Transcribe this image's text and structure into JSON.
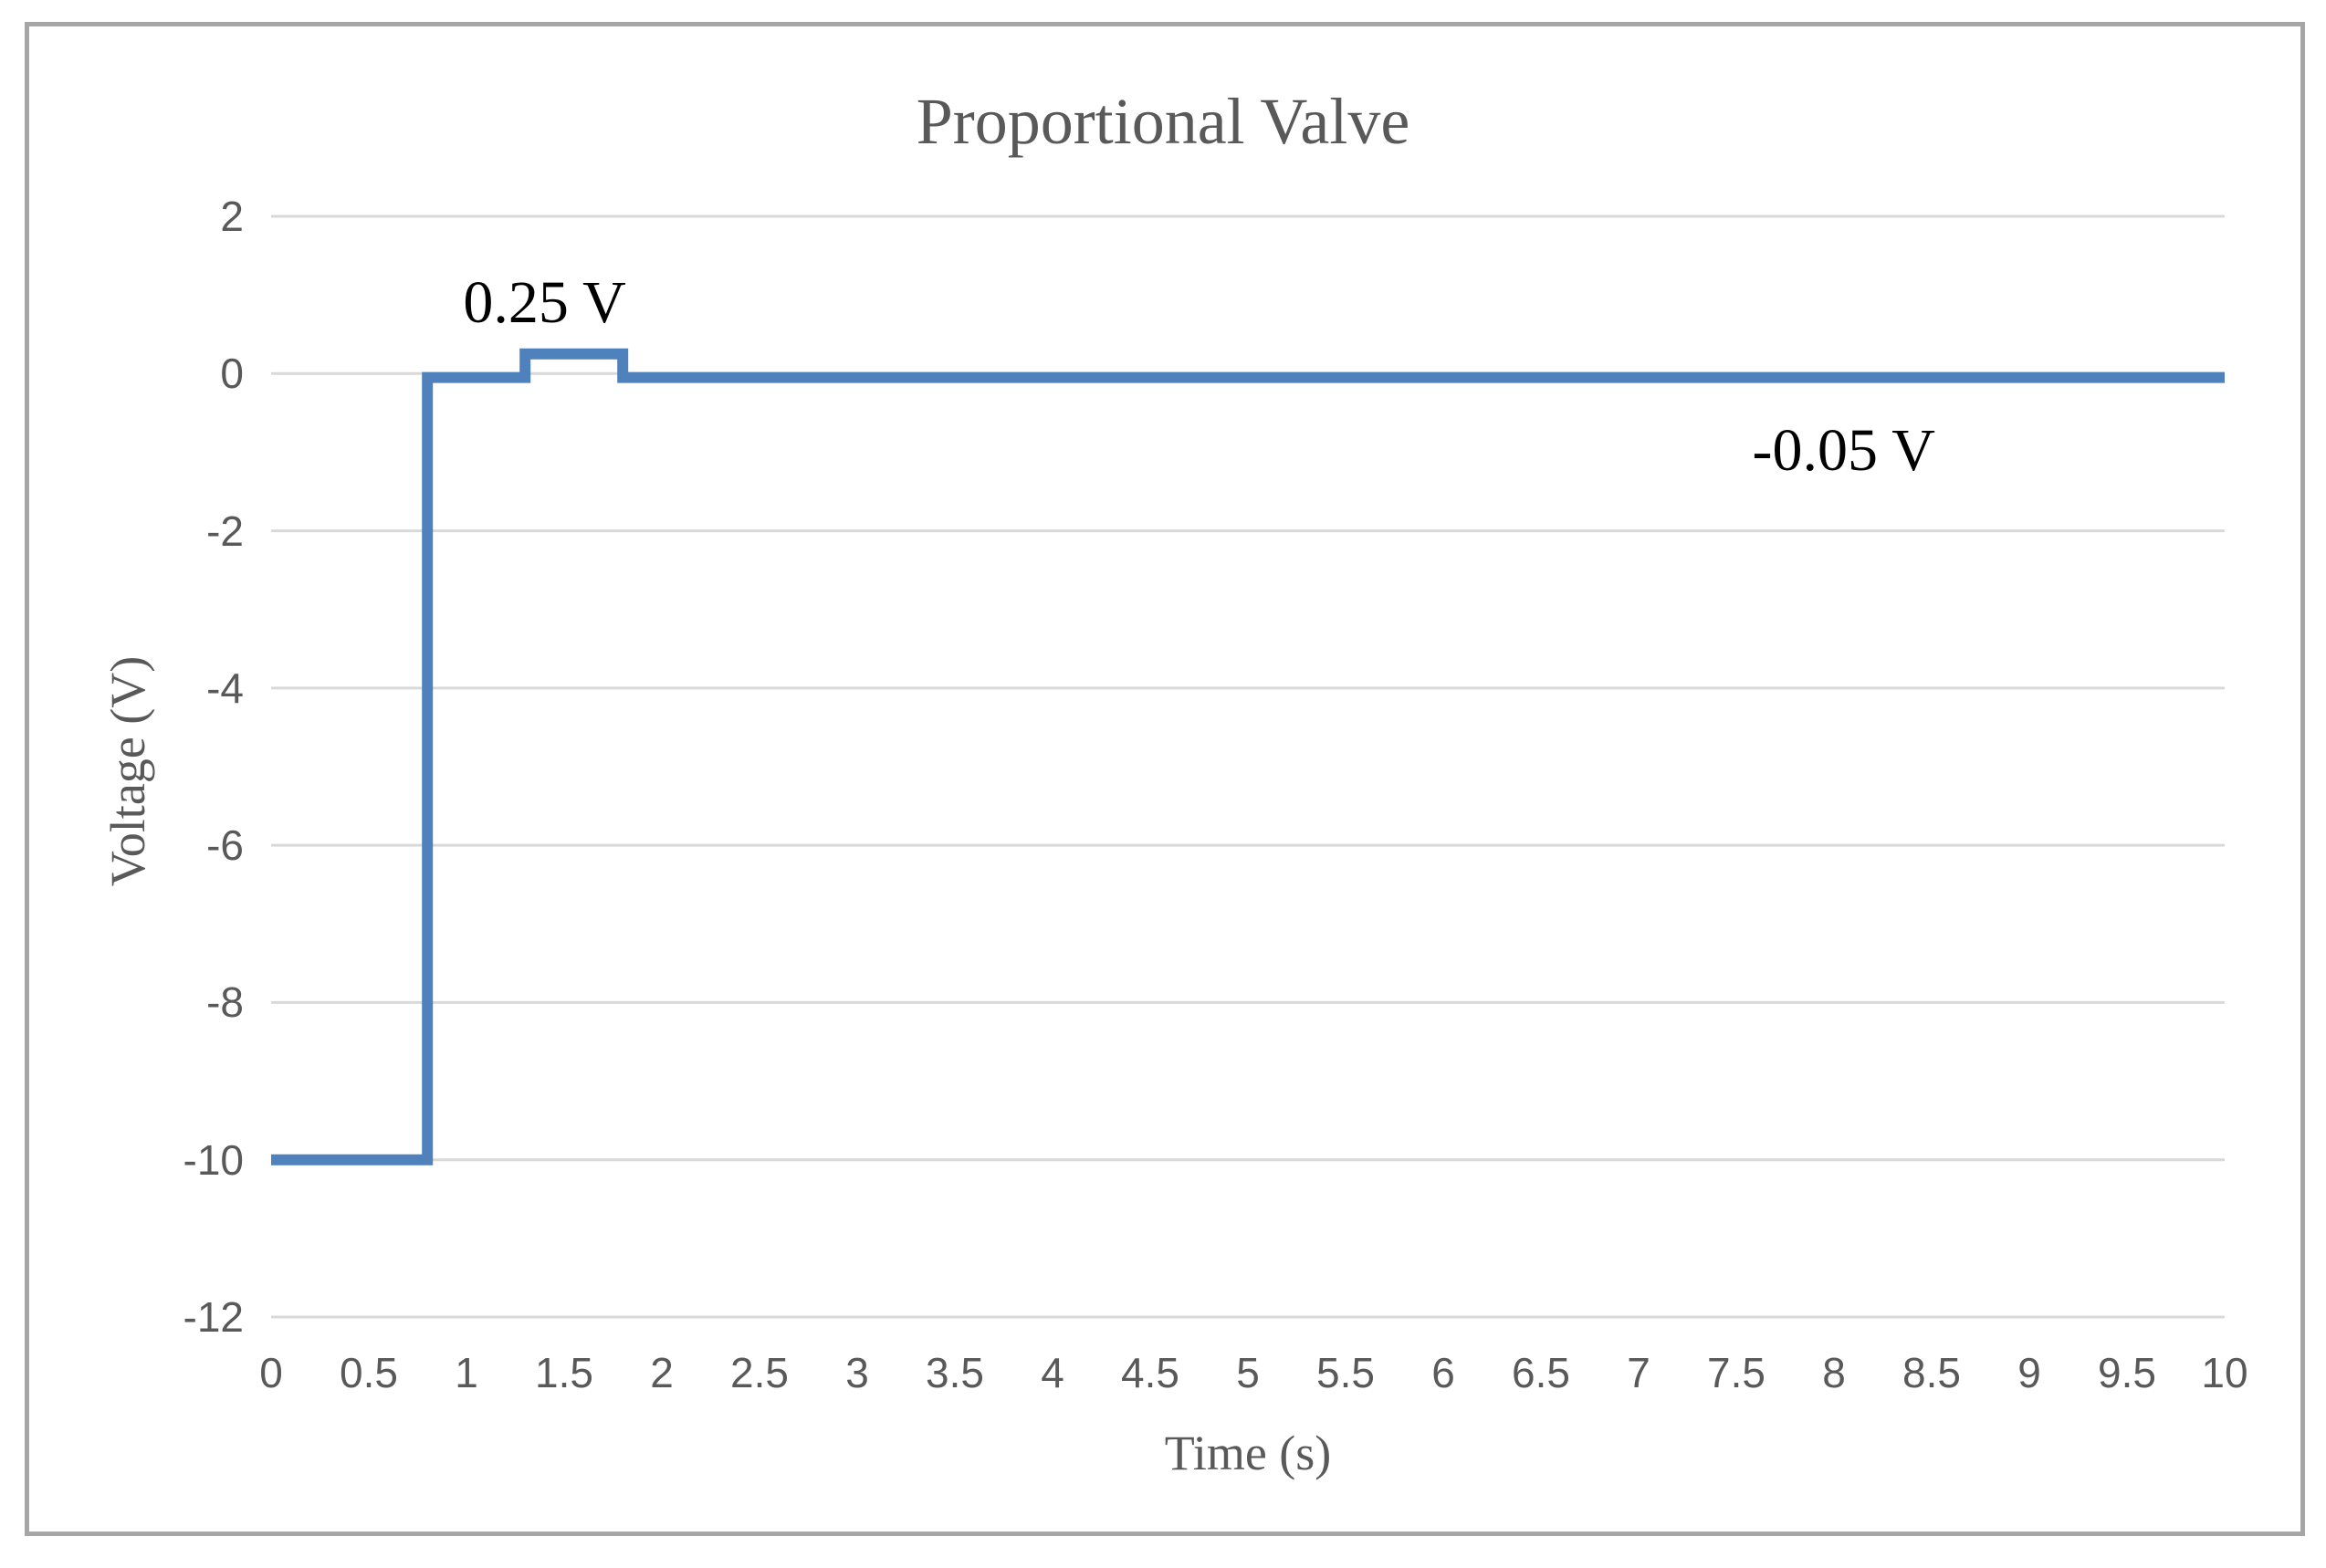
{
  "chart_data": {
    "type": "line",
    "subtype": "step",
    "title": "Proportional Valve",
    "xlabel": "Time (s)",
    "ylabel": "Voltage (V)",
    "xlim": [
      0,
      10
    ],
    "ylim": [
      -12,
      2
    ],
    "grid": "horizontal-only",
    "legend": "none",
    "xtick_values": [
      0,
      0.5,
      1,
      1.5,
      2,
      2.5,
      3,
      3.5,
      4,
      4.5,
      5,
      5.5,
      6,
      6.5,
      7,
      7.5,
      8,
      8.5,
      9,
      9.5,
      10
    ],
    "xtick_labels": [
      "0",
      "0.5",
      "1",
      "1.5",
      "2",
      "2.5",
      "3",
      "3.5",
      "4",
      "4.5",
      "5",
      "5.5",
      "6",
      "6.5",
      "7",
      "7.5",
      "8",
      "8.5",
      "9",
      "9.5",
      "10"
    ],
    "ytick_values": [
      2,
      0,
      -2,
      -4,
      -6,
      -8,
      -10,
      -12
    ],
    "ytick_labels": [
      "2",
      "0",
      "-2",
      "-4",
      "-6",
      "-8",
      "-10",
      "-12"
    ],
    "series": [
      {
        "name": "Voltage",
        "color": "#4F81BD",
        "points": [
          [
            0,
            -10
          ],
          [
            0.8,
            -10
          ],
          [
            0.8,
            -0.05
          ],
          [
            1.3,
            -0.05
          ],
          [
            1.3,
            0.25
          ],
          [
            1.8,
            0.25
          ],
          [
            1.8,
            -0.05
          ],
          [
            10,
            -0.05
          ]
        ]
      }
    ],
    "annotations": [
      {
        "text": "0.25 V",
        "x": 1.4,
        "y": 0.9
      },
      {
        "text": "-0.05 V",
        "x": 8.05,
        "y": -0.98
      }
    ],
    "colors": {
      "line": "#4F81BD",
      "gridline": "#D9D9D9",
      "axis_text": "#595959",
      "title_text": "#595959",
      "annotation_text": "#000000",
      "frame_border": "#A6A6A6",
      "background": "#FFFFFF"
    }
  }
}
